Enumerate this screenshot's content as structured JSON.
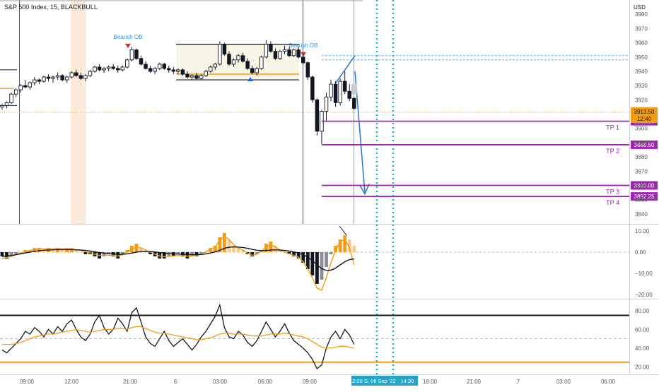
{
  "chart_data": {
    "type": "candlestick",
    "title": "S&P 500 Index, 15, BLACKBULL",
    "currency": "USD",
    "price_axis": {
      "ylim": [
        3833,
        3990
      ],
      "ticks": [
        3980,
        3970,
        3960,
        3950,
        3940,
        3930,
        3920,
        3900,
        3890,
        3880,
        3870,
        3860,
        3850,
        3840
      ]
    },
    "time_axis": {
      "ticks": [
        "09:00",
        "12:00",
        "21:00",
        "6",
        "03:00",
        "06:00",
        "09:00",
        "18:00",
        "21:00",
        "7",
        "03:00",
        "06:00"
      ],
      "cursor_labels": [
        "12:06 Se",
        "06 Sep '22",
        "14:30"
      ]
    },
    "current_price": {
      "value": "3913.50",
      "countdown": "12:40"
    },
    "targets": [
      {
        "name": "TP 1",
        "price": 3905.0,
        "label": "3905.00"
      },
      {
        "name": "TP 2",
        "price": 3888.5,
        "label": "3888.50"
      },
      {
        "name": "TP 3",
        "price": 3860.0,
        "label": "3860.00"
      },
      {
        "name": "TP 4",
        "price": 3852.25,
        "label": "3852.25"
      }
    ],
    "annotations": [
      "Bearish OB",
      "Bearish OB"
    ],
    "macd_axis": {
      "ylim": [
        -22,
        13
      ],
      "ticks": [
        "10.00",
        "0.00",
        "−10.00",
        "−20.00"
      ]
    },
    "rsi_axis": {
      "ylim": [
        12,
        92
      ],
      "ticks": [
        "80.00",
        "60.00",
        "40.00",
        "20.00"
      ],
      "upper": 75,
      "lower": 25,
      "mid": 50
    },
    "candles": [
      [
        3915,
        3917,
        3913,
        3916
      ],
      [
        3916,
        3919,
        3914,
        3918
      ],
      [
        3918,
        3925,
        3917,
        3924
      ],
      [
        3924,
        3928,
        3922,
        3927
      ],
      [
        3927,
        3931,
        3925,
        3930
      ],
      [
        3930,
        3934,
        3928,
        3929
      ],
      [
        3929,
        3933,
        3927,
        3932
      ],
      [
        3932,
        3936,
        3930,
        3934
      ],
      [
        3934,
        3935,
        3931,
        3933
      ],
      [
        3933,
        3937,
        3932,
        3936
      ],
      [
        3936,
        3938,
        3933,
        3935
      ],
      [
        3935,
        3937,
        3932,
        3936
      ],
      [
        3936,
        3939,
        3934,
        3937
      ],
      [
        3937,
        3938,
        3933,
        3934
      ],
      [
        3934,
        3937,
        3932,
        3936
      ],
      [
        3936,
        3940,
        3935,
        3939
      ],
      [
        3939,
        3941,
        3936,
        3937
      ],
      [
        3937,
        3939,
        3934,
        3935
      ],
      [
        3935,
        3938,
        3933,
        3937
      ],
      [
        3937,
        3941,
        3936,
        3940
      ],
      [
        3940,
        3944,
        3939,
        3943
      ],
      [
        3943,
        3945,
        3940,
        3941
      ],
      [
        3941,
        3943,
        3939,
        3942
      ],
      [
        3942,
        3944,
        3940,
        3943
      ],
      [
        3943,
        3945,
        3941,
        3942
      ],
      [
        3942,
        3944,
        3939,
        3941
      ],
      [
        3941,
        3944,
        3940,
        3943
      ],
      [
        3943,
        3949,
        3942,
        3948
      ],
      [
        3948,
        3957,
        3947,
        3955
      ],
      [
        3955,
        3956,
        3948,
        3949
      ],
      [
        3949,
        3951,
        3944,
        3945
      ],
      [
        3945,
        3947,
        3941,
        3942
      ],
      [
        3942,
        3944,
        3939,
        3940
      ],
      [
        3940,
        3943,
        3938,
        3942
      ],
      [
        3942,
        3946,
        3941,
        3945
      ],
      [
        3945,
        3946,
        3941,
        3942
      ],
      [
        3942,
        3944,
        3939,
        3941
      ],
      [
        3941,
        3943,
        3938,
        3940
      ],
      [
        3940,
        3942,
        3938,
        3941
      ],
      [
        3941,
        3942,
        3937,
        3938
      ],
      [
        3938,
        3940,
        3935,
        3936
      ],
      [
        3936,
        3938,
        3934,
        3937
      ],
      [
        3937,
        3939,
        3934,
        3935
      ],
      [
        3935,
        3938,
        3934,
        3937
      ],
      [
        3937,
        3941,
        3936,
        3940
      ],
      [
        3940,
        3944,
        3939,
        3943
      ],
      [
        3943,
        3946,
        3941,
        3945
      ],
      [
        3945,
        3961,
        3944,
        3959
      ],
      [
        3959,
        3960,
        3951,
        3952
      ],
      [
        3952,
        3954,
        3944,
        3945
      ],
      [
        3945,
        3949,
        3943,
        3948
      ],
      [
        3948,
        3952,
        3946,
        3951
      ],
      [
        3951,
        3953,
        3946,
        3947
      ],
      [
        3947,
        3949,
        3941,
        3942
      ],
      [
        3942,
        3944,
        3938,
        3939
      ],
      [
        3939,
        3943,
        3937,
        3942
      ],
      [
        3942,
        3951,
        3941,
        3950
      ],
      [
        3950,
        3962,
        3949,
        3959
      ],
      [
        3959,
        3961,
        3953,
        3954
      ],
      [
        3954,
        3956,
        3948,
        3949
      ],
      [
        3949,
        3955,
        3948,
        3954
      ],
      [
        3954,
        3958,
        3952,
        3955
      ],
      [
        3955,
        3957,
        3950,
        3951
      ],
      [
        3951,
        3956,
        3950,
        3955
      ],
      [
        3955,
        3957,
        3949,
        3950
      ],
      [
        3950,
        3952,
        3945,
        3946
      ],
      [
        3946,
        3947,
        3934,
        3936
      ],
      [
        3936,
        3937,
        3918,
        3920
      ],
      [
        3920,
        3921,
        3895,
        3898
      ],
      [
        3898,
        3913,
        3889,
        3912
      ],
      [
        3912,
        3925,
        3905,
        3922
      ],
      [
        3922,
        3934,
        3919,
        3931
      ],
      [
        3931,
        3933,
        3915,
        3918
      ],
      [
        3918,
        3935,
        3916,
        3933
      ],
      [
        3933,
        3940,
        3924,
        3926
      ],
      [
        3926,
        3931,
        3919,
        3921
      ],
      [
        3921,
        3922,
        3913,
        3914
      ]
    ],
    "macd_hist": [
      -2,
      -3,
      -2,
      -1,
      0,
      1,
      1,
      2,
      2,
      1,
      2,
      1,
      2,
      1,
      2,
      2,
      1,
      0,
      -1,
      -1,
      -2,
      -3,
      -2,
      -1,
      -2,
      -3,
      -1,
      1,
      3,
      4,
      2,
      0,
      -1,
      -2,
      -3,
      -3,
      -2,
      -2,
      -1,
      -2,
      -3,
      -2,
      -2,
      -1,
      0,
      2,
      3,
      7,
      9,
      6,
      3,
      2,
      1,
      -1,
      -2,
      -1,
      1,
      4,
      5,
      3,
      1,
      0,
      -1,
      -2,
      -3,
      -5,
      -8,
      -11,
      -15,
      -13,
      -7,
      -1,
      3,
      6,
      8,
      6,
      3
    ],
    "macd_line": [
      -3,
      -2.5,
      -2,
      -1.2,
      -0.5,
      0.2,
      0.8,
      1.3,
      1.5,
      1.5,
      1.6,
      1.6,
      1.7,
      1.6,
      1.6,
      1.5,
      1.2,
      0.8,
      0.2,
      -0.4,
      -1,
      -1.5,
      -1.6,
      -1.4,
      -1.5,
      -1.8,
      -1.2,
      0,
      1.5,
      2.5,
      2,
      1,
      0,
      -1,
      -1.8,
      -2.2,
      -2,
      -1.8,
      -1.5,
      -1.6,
      -1.9,
      -1.8,
      -1.6,
      -1,
      0.2,
      1.5,
      2.5,
      5.5,
      7.5,
      6,
      3.5,
      2,
      1,
      -0.5,
      -1.5,
      -1,
      0.5,
      2.5,
      3.5,
      2.5,
      1,
      0,
      -0.8,
      -1.5,
      -2.5,
      -4.5,
      -8,
      -12,
      -17,
      -18,
      -12,
      -5,
      1,
      5,
      6,
      2,
      -6
    ],
    "macd_signal": [
      -2,
      -1.8,
      -1.6,
      -1.2,
      -0.8,
      -0.4,
      0,
      0.4,
      0.7,
      0.9,
      1,
      1.1,
      1.2,
      1.2,
      1.2,
      1.2,
      1.1,
      1,
      0.8,
      0.5,
      0.2,
      -0.2,
      -0.5,
      -0.7,
      -0.8,
      -1,
      -1,
      -0.8,
      -0.4,
      0,
      0.3,
      0.4,
      0.3,
      0.1,
      -0.2,
      -0.5,
      -0.7,
      -0.8,
      -0.9,
      -1,
      -1.1,
      -1.2,
      -1.2,
      -1.1,
      -0.8,
      -0.4,
      0.1,
      0.9,
      1.8,
      2.3,
      2.5,
      2.4,
      2.2,
      1.8,
      1.3,
      0.9,
      0.7,
      0.8,
      1,
      1.1,
      1,
      0.8,
      0.5,
      0.1,
      -0.4,
      -1.2,
      -2.4,
      -4,
      -6,
      -7.8,
      -8.6,
      -8.5,
      -7.5,
      -6,
      -4.5,
      -3.5,
      -3.2
    ],
    "rsi": [
      38,
      35,
      40,
      45,
      50,
      58,
      55,
      62,
      58,
      52,
      60,
      55,
      63,
      58,
      66,
      70,
      60,
      52,
      48,
      55,
      68,
      75,
      62,
      55,
      60,
      72,
      66,
      58,
      78,
      83,
      68,
      52,
      45,
      42,
      50,
      58,
      48,
      42,
      46,
      50,
      44,
      38,
      44,
      52,
      58,
      66,
      74,
      86,
      62,
      52,
      50,
      58,
      54,
      46,
      42,
      48,
      58,
      68,
      60,
      52,
      58,
      66,
      56,
      48,
      44,
      40,
      35,
      28,
      18,
      22,
      40,
      52,
      58,
      50,
      60,
      54,
      44
    ],
    "rsi_ma": [
      44,
      44,
      44,
      45,
      46,
      48,
      50,
      52,
      53,
      54,
      55,
      55,
      56,
      57,
      58,
      59,
      60,
      59,
      58,
      57,
      58,
      59,
      60,
      60,
      60,
      61,
      61,
      60,
      62,
      63,
      63,
      61,
      59,
      57,
      56,
      56,
      55,
      54,
      53,
      52,
      51,
      50,
      49,
      49,
      50,
      51,
      53,
      55,
      56,
      56,
      55,
      55,
      55,
      54,
      53,
      53,
      53,
      54,
      55,
      55,
      55,
      56,
      55,
      54,
      53,
      52,
      50,
      47,
      44,
      41,
      40,
      40,
      41,
      42,
      42,
      41,
      40
    ]
  }
}
